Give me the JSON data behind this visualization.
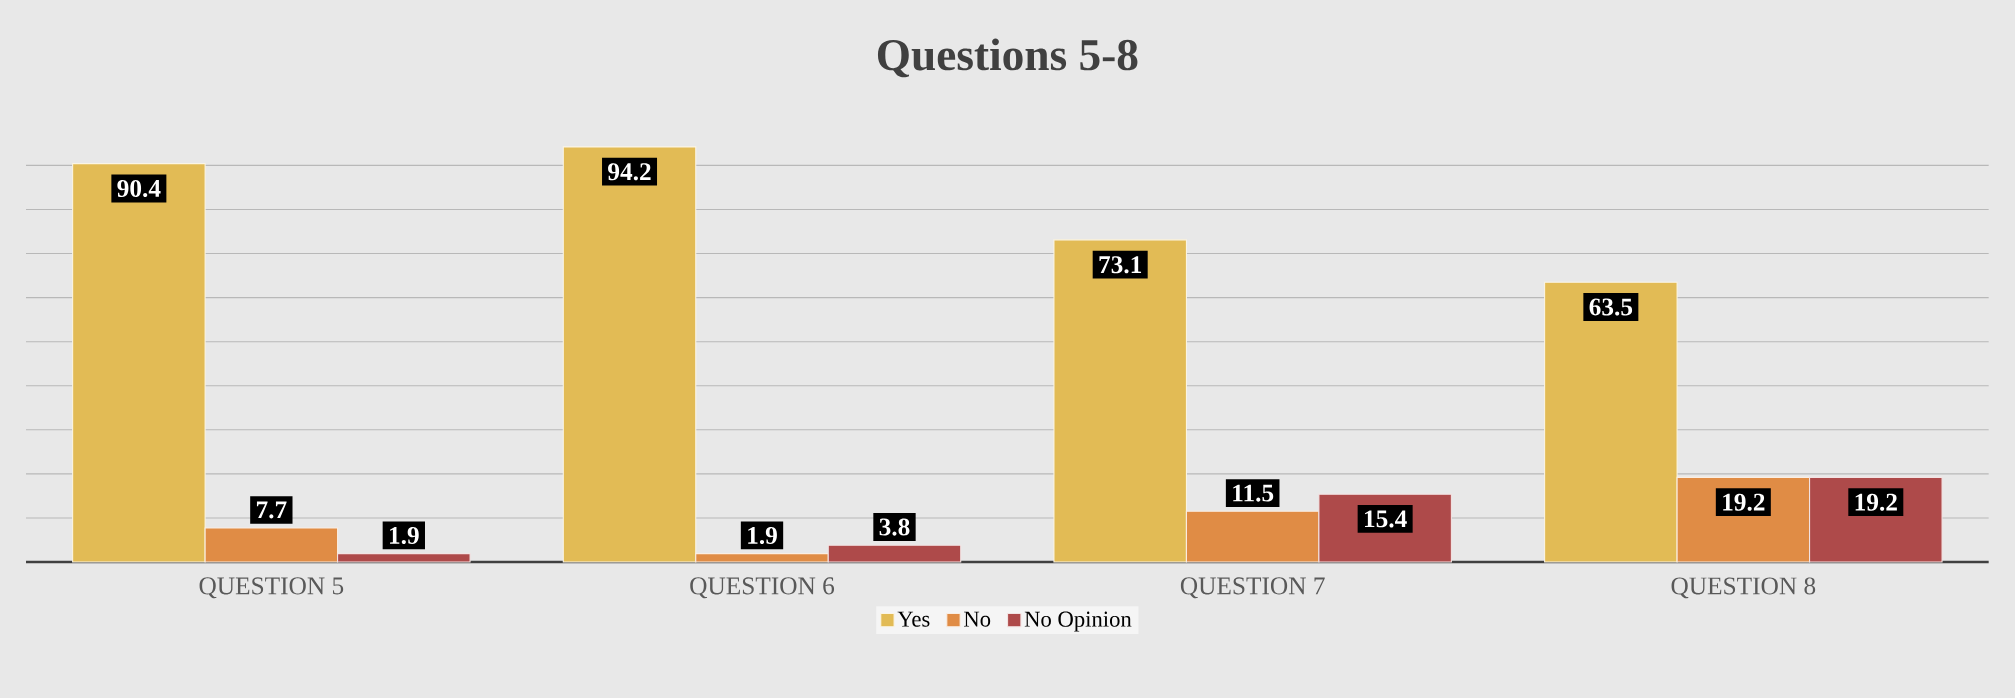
{
  "chart_data": {
    "type": "bar",
    "title": "Questions 5-8",
    "categories": [
      "QUESTION 5",
      "QUESTION 6",
      "QUESTION 7",
      "QUESTION 8"
    ],
    "series": [
      {
        "name": "Yes",
        "color": "#e2bb55",
        "values": [
          90.4,
          94.2,
          73.1,
          63.5
        ]
      },
      {
        "name": "No",
        "color": "#e08c45",
        "values": [
          7.7,
          1.9,
          11.5,
          19.2
        ]
      },
      {
        "name": "No Opinion",
        "color": "#ae4a4a",
        "values": [
          1.9,
          3.8,
          15.4,
          19.2
        ]
      }
    ],
    "tick_labels": "x",
    "grid": "y",
    "legend": "bottom",
    "data_labels": true
  }
}
